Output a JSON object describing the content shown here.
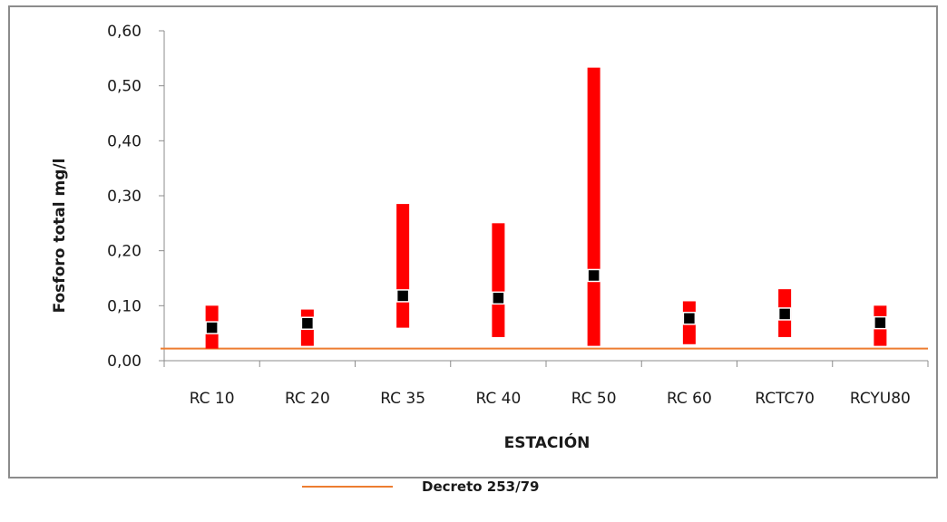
{
  "chart_data": {
    "type": "bar",
    "subtype": "range-bar-with-marker",
    "xlabel": "ESTACIÓN",
    "ylabel": "Fosforo total mg/l",
    "ylim": [
      0,
      0.6
    ],
    "yticks": [
      "0,00",
      "0,10",
      "0,20",
      "0,30",
      "0,40",
      "0,50",
      "0,60"
    ],
    "categories": [
      "RC 10",
      "RC 20",
      "RC 35",
      "RC 40",
      "RC 50",
      "RC 60",
      "RCTC70",
      "RCYU80"
    ],
    "series": [
      {
        "role": "max",
        "values": [
          0.1,
          0.093,
          0.285,
          0.25,
          0.533,
          0.108,
          0.13,
          0.1
        ]
      },
      {
        "role": "mean",
        "values": [
          0.06,
          0.068,
          0.118,
          0.114,
          0.155,
          0.077,
          0.085,
          0.069
        ]
      },
      {
        "role": "min",
        "values": [
          0.022,
          0.027,
          0.06,
          0.043,
          0.027,
          0.03,
          0.043,
          0.027
        ]
      }
    ],
    "reference_line": {
      "name": "Decreto 253/79",
      "value": 0.022,
      "color": "#ed7d31"
    },
    "grid": false,
    "legend": "bottom-center",
    "colors": {
      "range": "#ff0000",
      "marker": "#000000"
    }
  }
}
